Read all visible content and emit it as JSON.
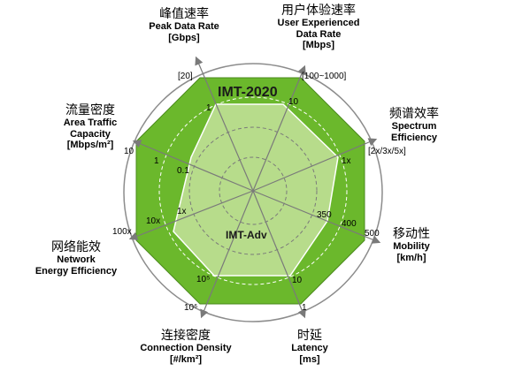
{
  "title_outer": "IMT-2020",
  "title_inner": "IMT-Adv",
  "axes": [
    {
      "key": "peak",
      "zh": "峰值速率",
      "en": "Peak Data Rate",
      "unit": "[Gbps]",
      "outer": "[20]",
      "inner": "1"
    },
    {
      "key": "user",
      "zh": "用户体验速率",
      "en": "User Experienced Data Rate",
      "unit": "[Mbps]",
      "outer": "[100~1000]",
      "inner": "10"
    },
    {
      "key": "spec",
      "zh": "频谱效率",
      "en": "Spectrum Efficiency",
      "unit": "",
      "outer": "[2x/3x/5x]",
      "inner": "1x"
    },
    {
      "key": "mob",
      "zh": "移动性",
      "en": "Mobility",
      "unit": "[km/h]",
      "outer": "500",
      "mid": "400",
      "inner": "350"
    },
    {
      "key": "lat",
      "zh": "时延",
      "en": "Latency",
      "unit": "[ms]",
      "outer": "1",
      "inner": "10"
    },
    {
      "key": "conn",
      "zh": "连接密度",
      "en": "Connection Density",
      "unit": "[#/km²]",
      "outer": "10⁶",
      "inner": "10⁵"
    },
    {
      "key": "energy",
      "zh": "网络能效",
      "en": "Network Energy Efficiency",
      "unit": "",
      "outer": "100x",
      "inner": "10x",
      "inner2": "1x"
    },
    {
      "key": "area",
      "zh": "流量密度",
      "en": "Area Traffic Capacity",
      "unit": "[Mbps/m²]",
      "outer": "10",
      "inner": "1",
      "inner2": "0.1"
    }
  ],
  "labels": {
    "peak": {
      "zh": "峰值速率",
      "en": "Peak Data Rate",
      "un": "[Gbps]"
    },
    "user": {
      "zh": "用户体验速率",
      "en1": "User Experienced",
      "en2": "Data Rate",
      "un": "[Mbps]"
    },
    "spec": {
      "zh": "频谱效率",
      "en1": "Spectrum",
      "en2": "Efficiency"
    },
    "mob": {
      "zh": "移动性",
      "en": "Mobility",
      "un": "[km/h]"
    },
    "lat": {
      "zh": "时延",
      "en": "Latency",
      "un": "[ms]"
    },
    "conn": {
      "zh": "连接密度",
      "en": "Connection Density",
      "un": "[#/km²]"
    },
    "energy": {
      "zh": "网络能效",
      "en1": "Network",
      "en2": "Energy Efficiency"
    },
    "area": {
      "zh": "流量密度",
      "en1": "Area Traffic",
      "en2": "Capacity",
      "un": "[Mbps/m²]"
    }
  },
  "colors": {
    "outer_fill": "#6bb82c",
    "inner_fill": "#b7dc8b",
    "ring": "#8c8c8c",
    "axis": "#7a7a7a"
  }
}
